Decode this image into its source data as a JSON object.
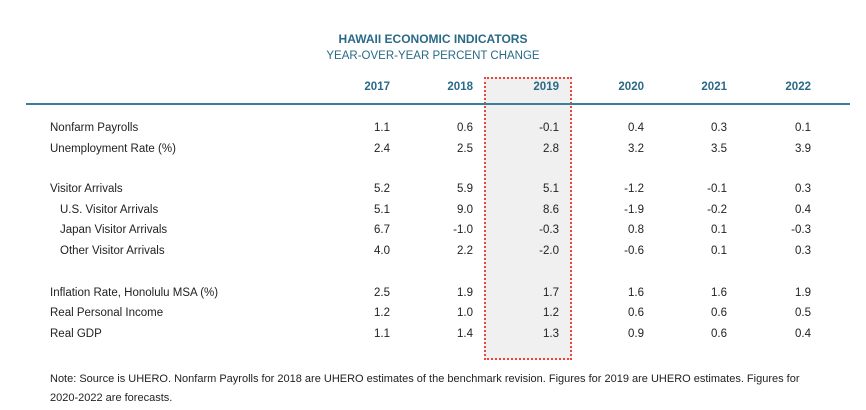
{
  "title": "HAWAII ECONOMIC INDICATORS",
  "subtitle": "YEAR-OVER-YEAR PERCENT CHANGE",
  "years": [
    "2017",
    "2018",
    "2019",
    "2020",
    "2021",
    "2022"
  ],
  "highlight_color": "#e8453c",
  "rows": [
    {
      "label": "Nonfarm Payrolls",
      "indent": false,
      "values": [
        "1.1",
        "0.6",
        "-0.1",
        "0.4",
        "0.3",
        "0.1"
      ]
    },
    {
      "label": "Unemployment  Rate (%)",
      "indent": false,
      "values": [
        "2.4",
        "2.5",
        "2.8",
        "3.2",
        "3.5",
        "3.9"
      ]
    },
    {
      "label": "Visitor Arrivals",
      "indent": false,
      "values": [
        "5.2",
        "5.9",
        "5.1",
        "-1.2",
        "-0.1",
        "0.3"
      ]
    },
    {
      "label": "U.S. Visitor Arrivals",
      "indent": true,
      "values": [
        "5.1",
        "9.0",
        "8.6",
        "-1.9",
        "-0.2",
        "0.4"
      ]
    },
    {
      "label": "Japan Visitor Arrivals",
      "indent": true,
      "values": [
        "6.7",
        "-1.0",
        "-0.3",
        "0.8",
        "0.1",
        "-0.3"
      ]
    },
    {
      "label": "Other Visitor Arrivals",
      "indent": true,
      "values": [
        "4.0",
        "2.2",
        "-2.0",
        "-0.6",
        "0.1",
        "0.3"
      ]
    },
    {
      "label": "Inflation Rate, Honolulu MSA (%)",
      "indent": false,
      "values": [
        "2.5",
        "1.9",
        "1.7",
        "1.6",
        "1.6",
        "1.9"
      ]
    },
    {
      "label": "Real Personal Income",
      "indent": false,
      "values": [
        "1.2",
        "1.0",
        "1.2",
        "0.6",
        "0.6",
        "0.5"
      ]
    },
    {
      "label": "Real GDP",
      "indent": false,
      "values": [
        "1.1",
        "1.4",
        "1.3",
        "0.9",
        "0.6",
        "0.4"
      ]
    }
  ],
  "note": "Note: Source is UHERO. Nonfarm Payrolls for 2018 are UHERO estimates of the benchmark revision. Figures for 2019 are UHERO estimates. Figures for 2020-2022 are forecasts."
}
